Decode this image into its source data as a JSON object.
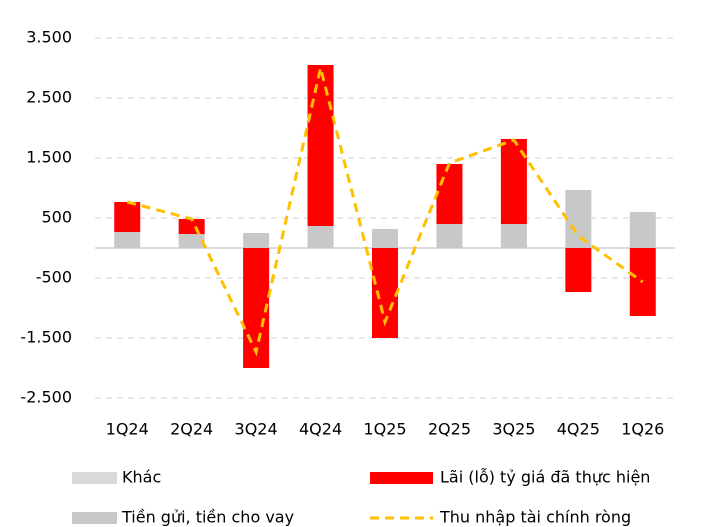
{
  "chart_data": {
    "type": "bar",
    "categories": [
      "1Q24",
      "2Q24",
      "3Q24",
      "4Q24",
      "1Q25",
      "2Q25",
      "3Q25",
      "4Q25",
      "1Q26"
    ],
    "series": [
      {
        "name": "Khác",
        "color": "#d9d9d9",
        "values": [
          0,
          0,
          0,
          0,
          0,
          0,
          0,
          0,
          0
        ]
      },
      {
        "name": "Tiền gửi, tiền cho vay",
        "color": "#c8c8c8",
        "values": [
          267,
          233,
          250,
          367,
          317,
          400,
          400,
          967,
          600
        ]
      },
      {
        "name": "Lãi (lỗ) tỷ giá đã thực hiện",
        "color": "#ff0000",
        "values": [
          500,
          250,
          -2000,
          2683,
          -1500,
          1000,
          1417,
          -733,
          -1133
        ]
      },
      {
        "name": "Thu nhập tài chính ròng",
        "type": "line",
        "color": "#ffc000",
        "values": [
          767,
          483,
          -1733,
          3000,
          -1233,
          1417,
          1800,
          200,
          -567
        ]
      }
    ],
    "ylim": [
      -2500,
      3500
    ],
    "yticks": [
      {
        "value": -2500,
        "label": "-2.500"
      },
      {
        "value": -1500,
        "label": "-1.500"
      },
      -500,
      500,
      {
        "value": 1500,
        "label": "1.500"
      },
      {
        "value": 2500,
        "label": "2.500"
      },
      {
        "value": 3500,
        "label": "3.500"
      }
    ],
    "grid": true,
    "legend": "bottom"
  }
}
